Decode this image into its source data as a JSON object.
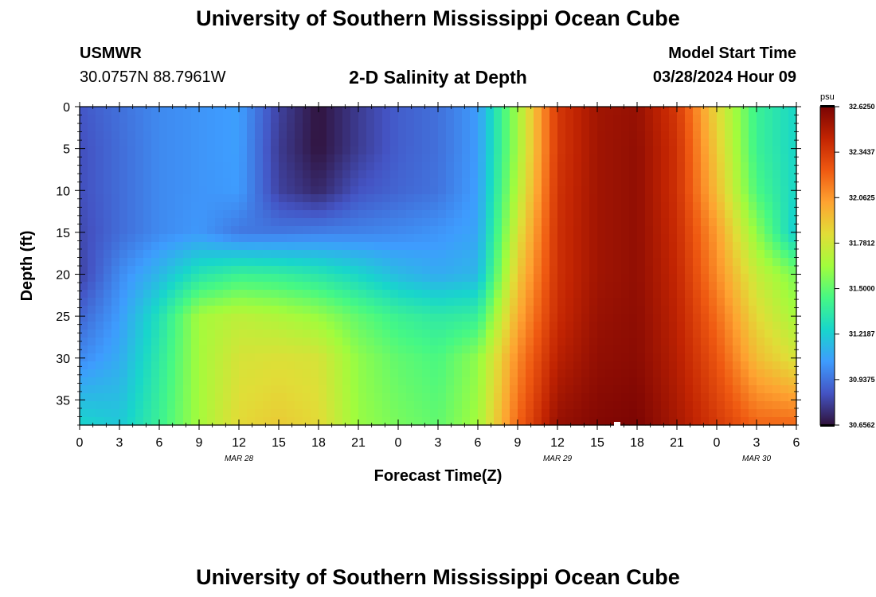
{
  "header": {
    "title": "University of Southern Mississippi Ocean Cube",
    "station": "USMWR",
    "coords": "30.0757N  88.7961W",
    "subtitle": "2-D Salinity at Depth",
    "model_label": "Model Start Time",
    "model_time": "03/28/2024 Hour 09"
  },
  "footer": {
    "title": "University of Southern Mississippi Ocean Cube"
  },
  "colorbar": {
    "unit": "psu",
    "ticks": [
      "32.6250",
      "32.3437",
      "32.0625",
      "31.7812",
      "31.5000",
      "31.2187",
      "30.9375",
      "30.6562"
    ],
    "colors": [
      "#30123b",
      "#4454c4",
      "#3e9cfe",
      "#18d6cb",
      "#46f884",
      "#a2fc3c",
      "#e1dd37",
      "#fea331",
      "#ef5911",
      "#c22402",
      "#7a0403"
    ]
  },
  "chart_data": {
    "type": "heatmap",
    "ylabel": "Depth (ft)",
    "xlabel": "Forecast Time(Z)",
    "ylim": [
      38,
      0
    ],
    "y_ticks": [
      0,
      5,
      10,
      15,
      20,
      25,
      30,
      35
    ],
    "xlim": [
      0,
      54
    ],
    "x_tick_labels": [
      "0",
      "3",
      "6",
      "9",
      "12",
      "15",
      "18",
      "21",
      "0",
      "3",
      "6",
      "9",
      "12",
      "15",
      "18",
      "21",
      "0",
      "3",
      "6"
    ],
    "x_tick_hours": [
      0,
      3,
      6,
      9,
      12,
      15,
      18,
      21,
      24,
      27,
      30,
      33,
      36,
      39,
      42,
      45,
      48,
      51,
      54
    ],
    "date_labels": [
      {
        "text": "MAR 28",
        "hour": 12
      },
      {
        "text": "MAR 29",
        "hour": 36
      },
      {
        "text": "MAR 30",
        "hour": 51
      }
    ],
    "color_range": [
      30.6562,
      32.625
    ],
    "depths": [
      0,
      5,
      10,
      15,
      20,
      25,
      30,
      38
    ],
    "times": [
      0,
      3,
      6,
      9,
      12,
      15,
      18,
      21,
      24,
      27,
      30,
      33,
      36,
      39,
      42,
      45,
      48,
      51,
      54
    ],
    "salinity": [
      [
        30.86,
        30.93,
        31.0,
        31.03,
        31.06,
        30.8,
        30.66,
        30.78,
        30.88,
        30.93,
        31.05,
        31.65,
        32.35,
        32.52,
        32.55,
        32.35,
        31.85,
        31.4,
        31.25
      ],
      [
        30.84,
        30.92,
        31.0,
        31.03,
        31.06,
        30.78,
        30.66,
        30.78,
        30.88,
        30.93,
        31.05,
        31.65,
        32.35,
        32.52,
        32.56,
        32.38,
        31.9,
        31.4,
        31.25
      ],
      [
        30.84,
        30.92,
        31.0,
        31.03,
        31.05,
        30.8,
        30.72,
        30.85,
        30.9,
        30.94,
        31.06,
        31.7,
        32.37,
        32.52,
        32.56,
        32.38,
        31.95,
        31.45,
        31.25
      ],
      [
        30.82,
        30.92,
        31.0,
        31.04,
        30.95,
        30.95,
        30.97,
        30.98,
        31.0,
        31.03,
        31.08,
        31.8,
        32.38,
        32.52,
        32.56,
        32.4,
        32.05,
        31.6,
        31.2
      ],
      [
        30.8,
        31.0,
        31.14,
        31.32,
        31.4,
        31.38,
        31.33,
        31.25,
        31.15,
        31.1,
        31.14,
        31.9,
        32.38,
        32.52,
        32.56,
        32.42,
        32.1,
        31.75,
        31.55
      ],
      [
        30.9,
        31.05,
        31.3,
        31.65,
        31.72,
        31.68,
        31.62,
        31.5,
        31.4,
        31.35,
        31.38,
        32.0,
        32.4,
        32.54,
        32.57,
        32.44,
        32.18,
        31.85,
        31.65
      ],
      [
        31.0,
        31.1,
        31.35,
        31.65,
        31.8,
        31.82,
        31.8,
        31.6,
        31.5,
        31.45,
        31.6,
        32.1,
        32.45,
        32.56,
        32.58,
        32.46,
        32.25,
        31.95,
        31.8
      ],
      [
        31.25,
        31.2,
        31.4,
        31.65,
        31.85,
        31.9,
        31.85,
        31.62,
        31.55,
        31.5,
        31.65,
        32.2,
        32.55,
        32.6,
        32.62,
        32.5,
        32.35,
        32.2,
        32.2
      ]
    ]
  }
}
